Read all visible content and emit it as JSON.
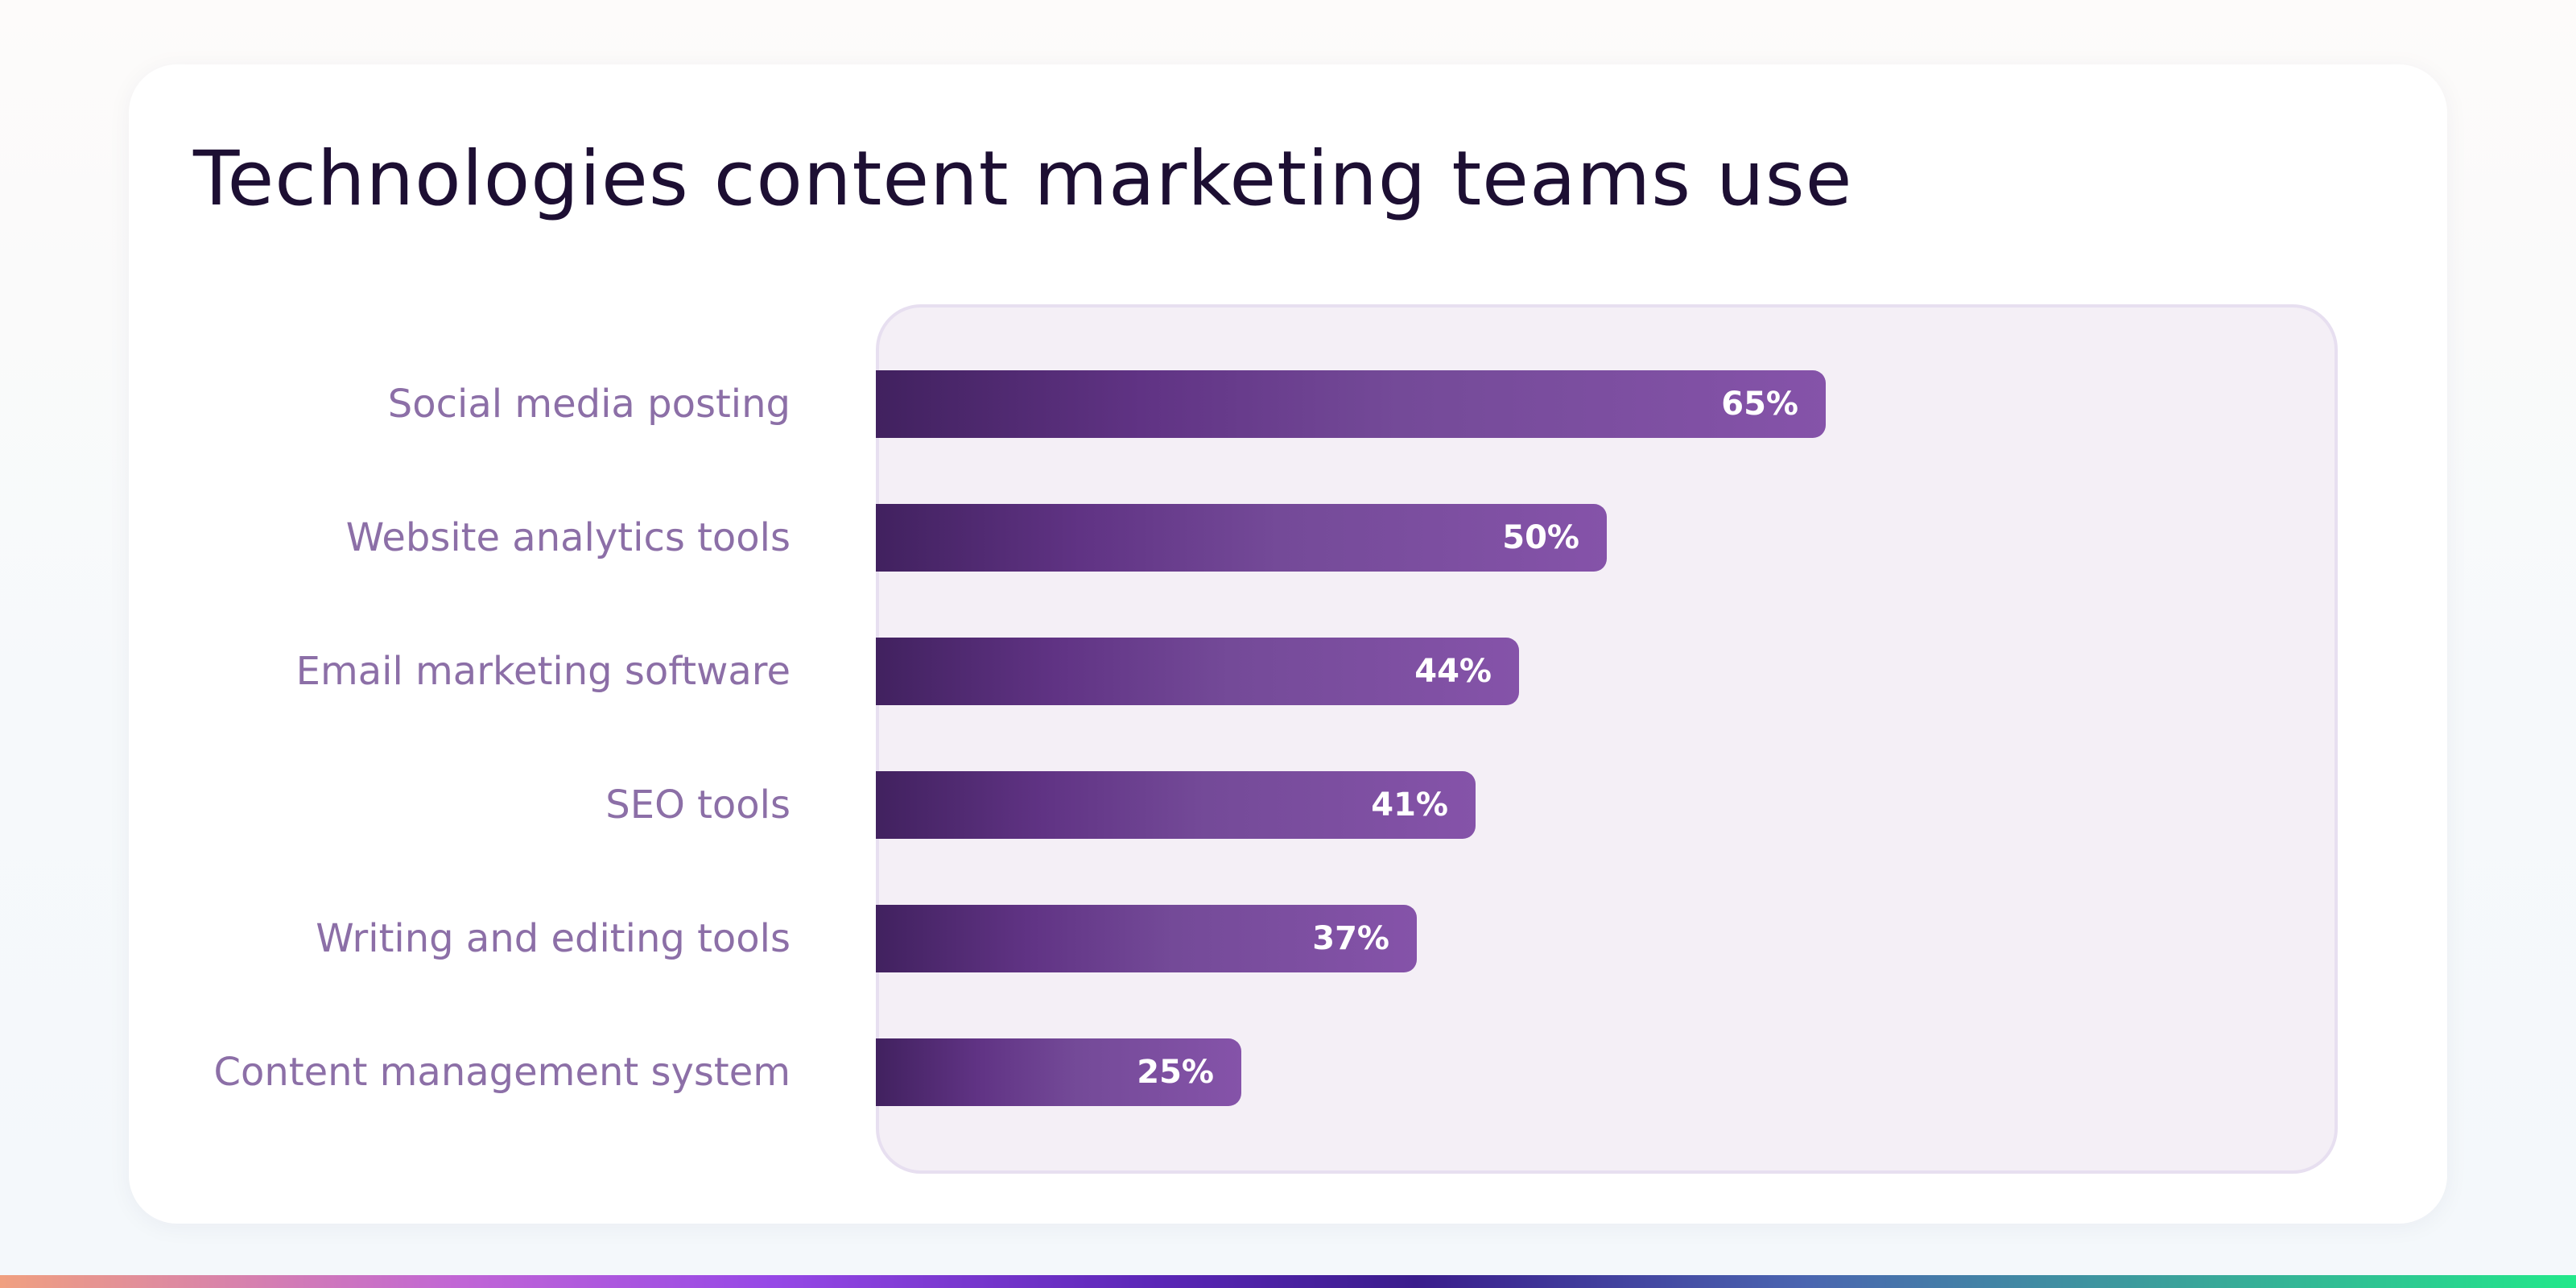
{
  "chart_data": {
    "type": "bar",
    "orientation": "horizontal",
    "title": "Technologies content marketing teams use",
    "categories": [
      "Social media posting",
      "Website analytics tools",
      "Email marketing software",
      "SEO tools",
      "Writing and editing tools",
      "Content management system"
    ],
    "values": [
      65,
      50,
      44,
      41,
      37,
      25
    ],
    "value_labels": [
      "65%",
      "50%",
      "44%",
      "41%",
      "37%",
      "25%"
    ],
    "xlim": [
      0,
      100
    ],
    "unit": "%",
    "grid": false,
    "legend": "none",
    "colors": {
      "bar_start": "#41215f",
      "bar_end": "#8553a9",
      "category_label": "#8c6fa7",
      "title": "#1d0f33",
      "plot_background": "#f4eff6"
    }
  }
}
